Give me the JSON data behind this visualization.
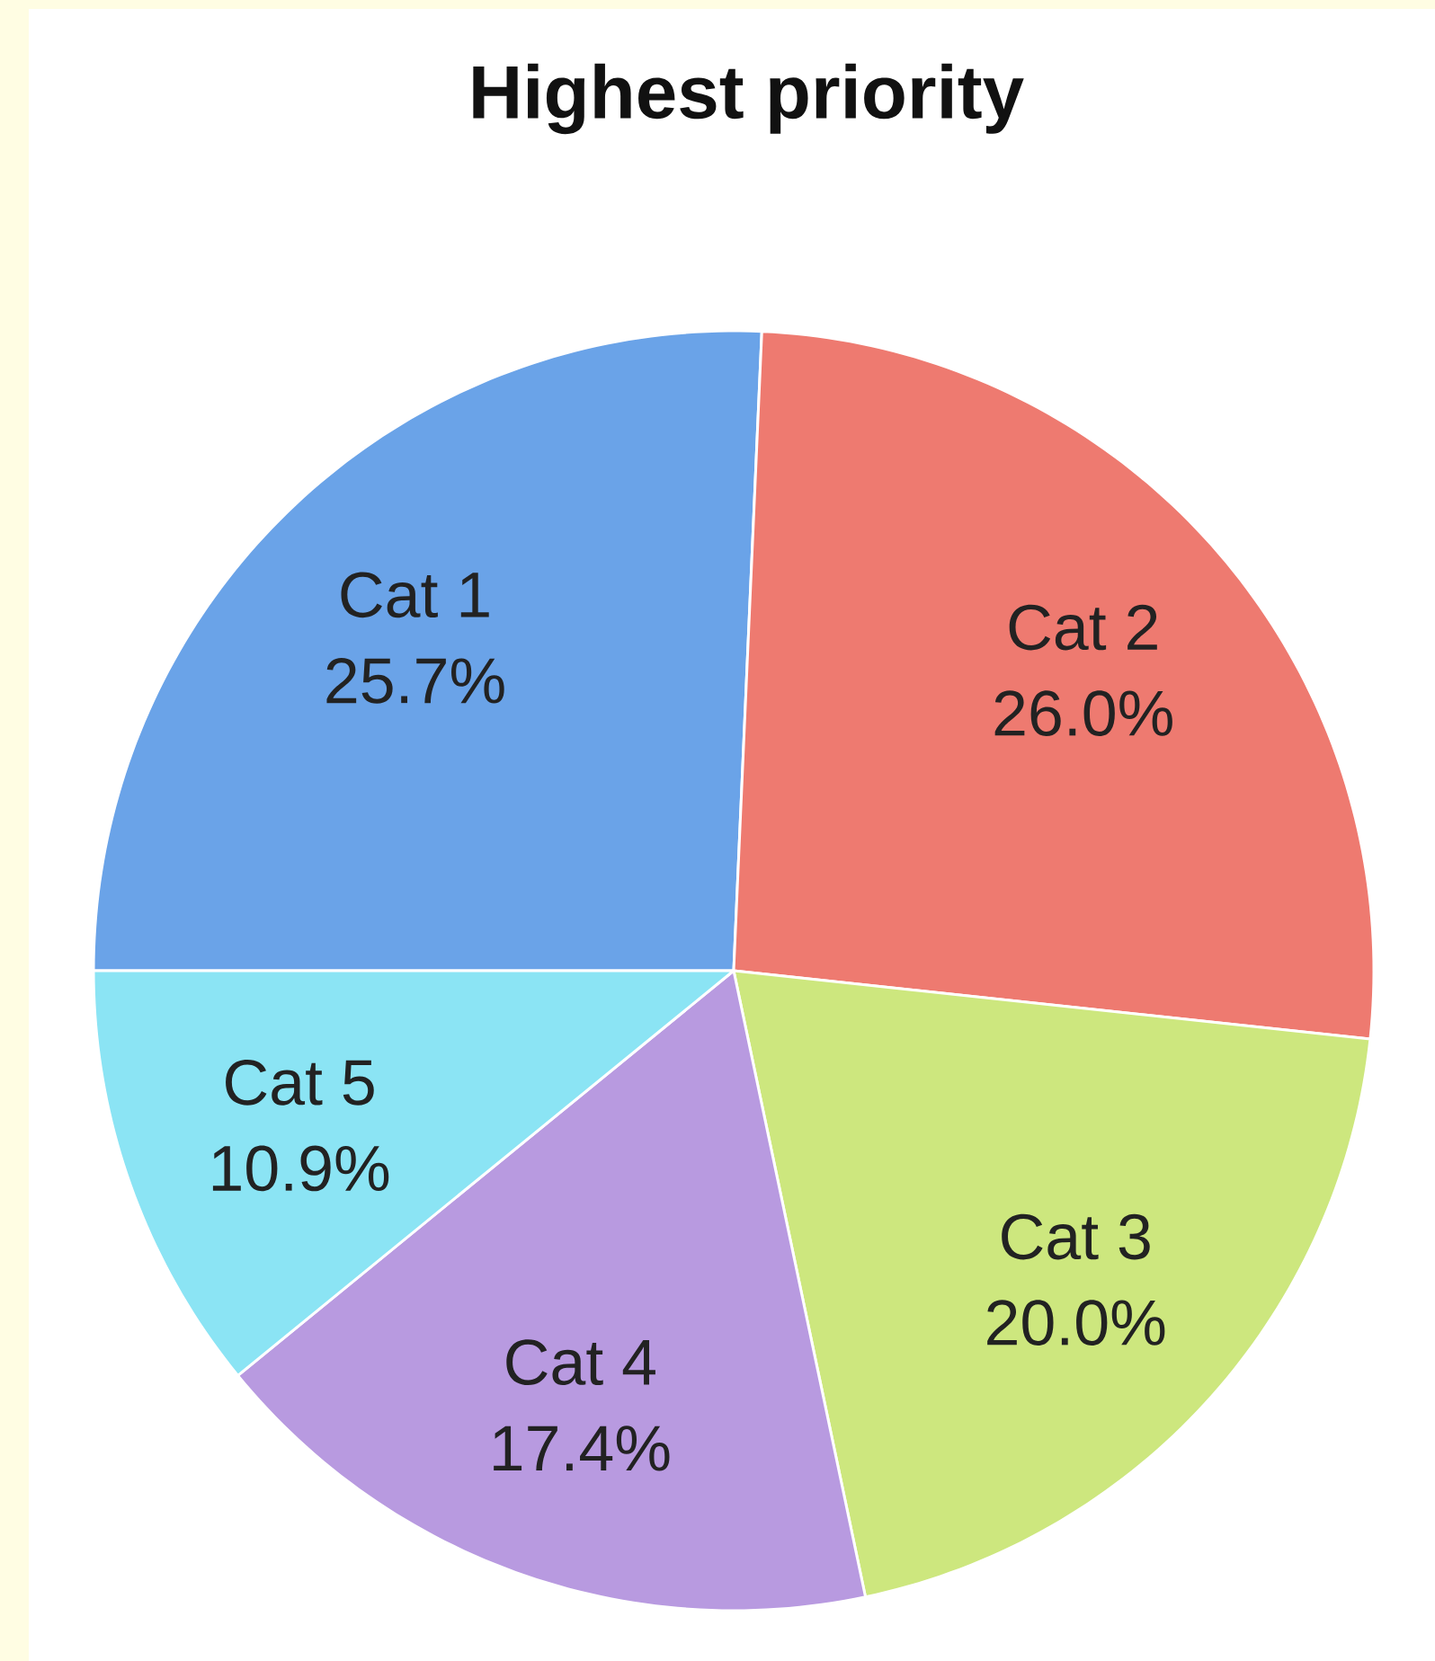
{
  "chart_data": {
    "type": "pie",
    "title": "Highest priority",
    "categories": [
      "Cat 1",
      "Cat 2",
      "Cat 3",
      "Cat 4",
      "Cat 5"
    ],
    "values": [
      25.7,
      26.0,
      20.0,
      17.4,
      10.9
    ],
    "colors": [
      "#6aa3e8",
      "#ee7a70",
      "#cde77e",
      "#b89ae0",
      "#8be4f4"
    ],
    "value_labels": [
      "25.7%",
      "26.0%",
      "20.0%",
      "17.4%",
      "10.9%"
    ]
  }
}
